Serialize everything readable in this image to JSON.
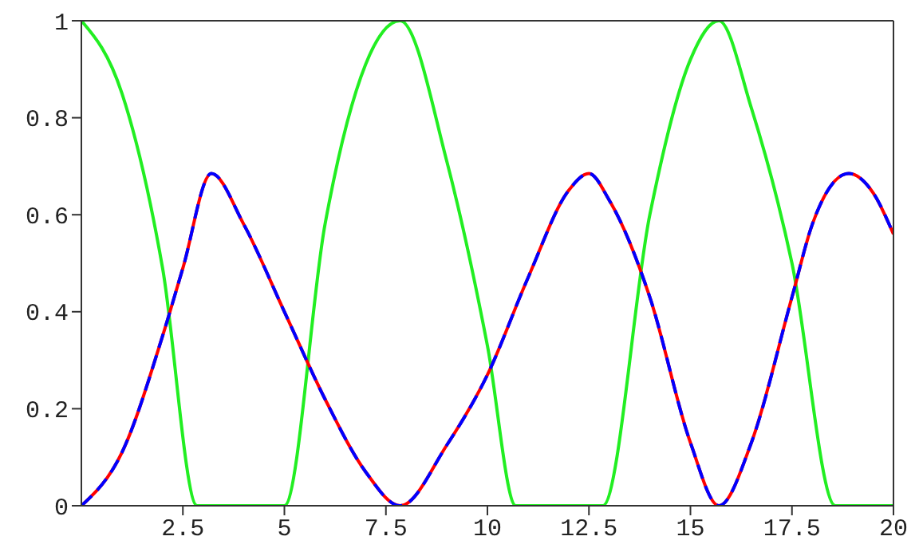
{
  "chart_data": {
    "type": "line",
    "xlim": [
      0,
      20
    ],
    "xticks": [
      2.5,
      5,
      7.5,
      10,
      12.5,
      15,
      17.5,
      20
    ],
    "ylim": [
      0,
      1
    ],
    "yticks": [
      0,
      0.2,
      0.4,
      0.6,
      0.8,
      1
    ],
    "grid": false,
    "marker": "none",
    "series": [
      {
        "color": "#22ee22",
        "line_style": "solid",
        "x": [
          0,
          1,
          2,
          2.85,
          5,
          6,
          7,
          7.85,
          9,
          10,
          10.7,
          12.84,
          14,
          15,
          15.7,
          16.5,
          17.5,
          18.57,
          20
        ],
        "values": [
          1,
          0.85,
          0.49,
          0,
          0,
          0.58,
          0.91,
          1,
          0.71,
          0.33,
          0,
          0,
          0.6,
          0.92,
          1,
          0.82,
          0.5,
          0,
          0
        ]
      },
      {
        "color": "#ff0000",
        "line_style": "solid",
        "x": [
          0,
          1,
          2,
          2.5,
          3.2,
          4,
          5,
          6,
          7,
          7.85,
          9,
          10,
          11,
          12,
          12.5,
          13,
          14,
          15,
          15.7,
          16.5,
          17.5,
          18,
          18.9,
          19.5,
          20
        ],
        "values": [
          0,
          0.11,
          0.35,
          0.49,
          0.685,
          0.58,
          0.4,
          0.22,
          0.07,
          0,
          0.125,
          0.27,
          0.47,
          0.65,
          0.685,
          0.63,
          0.43,
          0.13,
          0,
          0.13,
          0.43,
          0.58,
          0.685,
          0.645,
          0.56
        ]
      },
      {
        "color": "#0000ff",
        "line_style": "dashed",
        "x": [
          0,
          1,
          2,
          2.5,
          3.2,
          4,
          5,
          6,
          7,
          7.85,
          9,
          10,
          11,
          12,
          12.5,
          13,
          14,
          15,
          15.7,
          16.5,
          17.5,
          18,
          18.9,
          19.5,
          20
        ],
        "values": [
          0,
          0.11,
          0.35,
          0.49,
          0.685,
          0.58,
          0.4,
          0.22,
          0.07,
          0,
          0.125,
          0.27,
          0.47,
          0.65,
          0.685,
          0.63,
          0.43,
          0.13,
          0,
          0.13,
          0.43,
          0.58,
          0.685,
          0.645,
          0.56
        ]
      }
    ]
  }
}
